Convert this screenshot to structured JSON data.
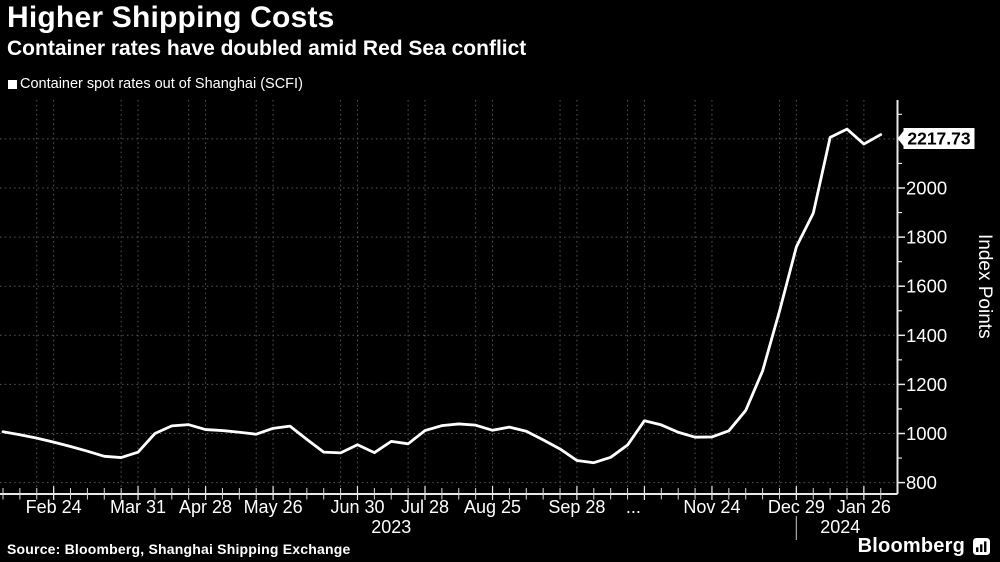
{
  "header": {
    "title": "Higher Shipping Costs",
    "subtitle": "Container rates have doubled amid Red Sea conflict"
  },
  "legend": {
    "label": "Container spot rates out of Shanghai (SCFI)",
    "marker_color": "#ffffff"
  },
  "footer": {
    "source": "Source: Bloomberg, Shanghai Shipping Exchange",
    "brand": "Bloomberg"
  },
  "colors": {
    "background": "#000000",
    "text": "#ffffff",
    "line": "#ffffff",
    "grid": "#585858",
    "axis": "#e8e8e8",
    "flag_bg": "#ffffff",
    "flag_text": "#000000",
    "year_separator": "#aaaaaa"
  },
  "chart_data": {
    "type": "line",
    "series_name": "Container spot rates out of Shanghai (SCFI)",
    "ylabel": "Index Points",
    "grid": "dotted",
    "legend_position": "top-left",
    "ylim": [
      747,
      2358
    ],
    "y_tick_labels": [
      800,
      1000,
      1200,
      1400,
      1600,
      1800,
      2000
    ],
    "y_gridlines": [
      800,
      1000,
      1200,
      1400,
      1600,
      1800,
      2000,
      2200
    ],
    "y_minor_ticks": [
      900,
      1100,
      1300,
      1500,
      1700,
      1900,
      2100,
      2300
    ],
    "x": [
      "Feb 3 2023",
      "Feb 10 2023",
      "Feb 17 2023",
      "Feb 24 2023",
      "Mar 3 2023",
      "Mar 10 2023",
      "Mar 17 2023",
      "Mar 24 2023",
      "Mar 31 2023",
      "Apr 7 2023",
      "Apr 14 2023",
      "Apr 21 2023",
      "Apr 28 2023",
      "May 5 2023",
      "May 12 2023",
      "May 19 2023",
      "May 26 2023",
      "Jun 2 2023",
      "Jun 9 2023",
      "Jun 16 2023",
      "Jun 23 2023",
      "Jun 30 2023",
      "Jul 7 2023",
      "Jul 14 2023",
      "Jul 21 2023",
      "Jul 28 2023",
      "Aug 4 2023",
      "Aug 11 2023",
      "Aug 18 2023",
      "Aug 25 2023",
      "Sep 1 2023",
      "Sep 8 2023",
      "Sep 15 2023",
      "Sep 22 2023",
      "Sep 28 2023",
      "Oct 6 2023",
      "Oct 13 2023",
      "Oct 20 2023",
      "Oct 27 2023",
      "Nov 3 2023",
      "Nov 10 2023",
      "Nov 17 2023",
      "Nov 24 2023",
      "Dec 1 2023",
      "Dec 8 2023",
      "Dec 15 2023",
      "Dec 22 2023",
      "Dec 29 2023",
      "Jan 5 2024",
      "Jan 12 2024",
      "Jan 19 2024",
      "Jan 26 2024",
      "Feb 2 2024"
    ],
    "values": [
      1007,
      995,
      981,
      965,
      947,
      928,
      907,
      902,
      924,
      1000,
      1031,
      1036,
      1016,
      1012,
      1005,
      997,
      1021,
      1030,
      976,
      924,
      921,
      954,
      922,
      968,
      958,
      1012,
      1032,
      1039,
      1034,
      1013,
      1026,
      1009,
      974,
      937,
      890,
      881,
      903,
      953,
      1052,
      1035,
      1005,
      985,
      986,
      1011,
      1094,
      1255,
      1498,
      1760,
      1897,
      2206,
      2240,
      2179,
      2217.73
    ],
    "x_ticks": [
      {
        "label": "Feb 24",
        "week": 3
      },
      {
        "label": "Mar 31",
        "week": 8
      },
      {
        "label": "Apr 28",
        "week": 12
      },
      {
        "label": "May 26",
        "week": 16
      },
      {
        "label": "Jun 30",
        "week": 21
      },
      {
        "label": "Jul 28",
        "week": 25
      },
      {
        "label": "Aug 25",
        "week": 29
      },
      {
        "label": "Sep 28",
        "week": 34
      },
      {
        "label": "...",
        "week": 38,
        "dx": -11
      },
      {
        "label": "Nov 24",
        "week": 42
      },
      {
        "label": "Dec 29",
        "week": 47
      },
      {
        "label": "Jan 26",
        "week": 51
      }
    ],
    "year_labels": [
      {
        "label": "2023",
        "week": 23
      },
      {
        "label": "2024",
        "week": 49.6
      }
    ],
    "year_separator_week": 47,
    "last_value": 2217.73,
    "last_value_label": "2217.73"
  }
}
